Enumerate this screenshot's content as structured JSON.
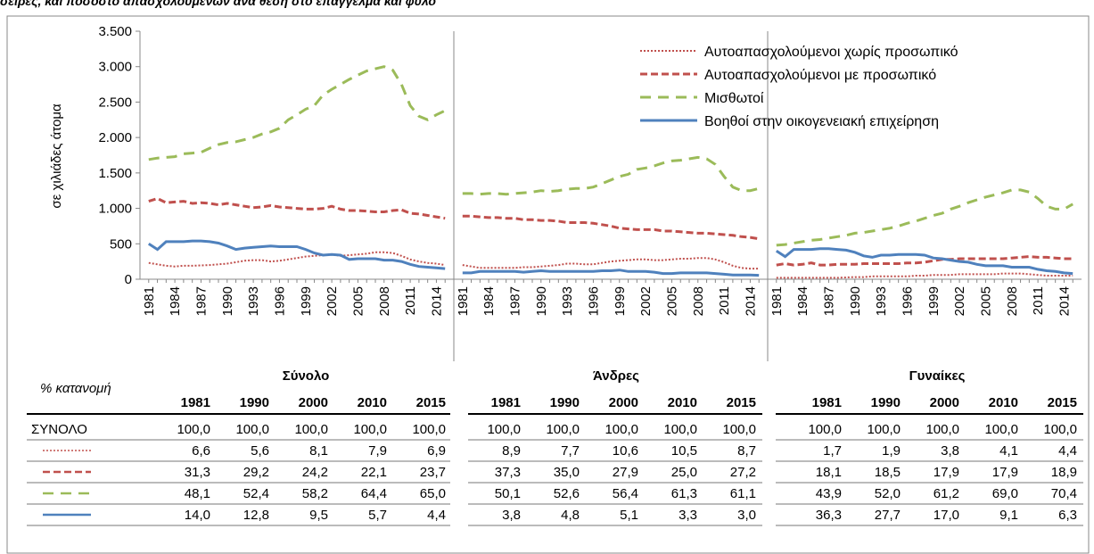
{
  "chart_data": {
    "type": "line",
    "title": "σειρές, και ποσοστό απασχολούμενων ανά θέση στο επάγγελμα και φύλο",
    "ylabel": "σε χιλιάδες άτομα",
    "ylim": [
      0,
      3500
    ],
    "yticks": [
      0,
      500,
      {
        "value": 1000,
        "label": "1.000"
      },
      {
        "value": 1500,
        "label": "1.500"
      },
      {
        "value": 2000,
        "label": "2.000"
      },
      {
        "value": 2500,
        "label": "2.500"
      },
      {
        "value": 3000,
        "label": "3.000"
      },
      {
        "value": 3500,
        "label": "3.500"
      }
    ],
    "legend": "upper right",
    "grid": false,
    "categories": [
      "1981",
      null,
      null,
      "1984",
      null,
      null,
      "1987",
      null,
      null,
      "1990",
      null,
      null,
      "1993",
      null,
      null,
      "1996",
      null,
      null,
      "1999",
      null,
      null,
      "2002",
      null,
      null,
      "2005",
      null,
      null,
      "2008",
      null,
      null,
      "2011",
      null,
      null,
      "2014",
      null
    ],
    "series": [
      {
        "name": "Αυτοαπασχολούμενοι χωρίς προσωπικό",
        "color": "#c0504d",
        "style": "dotted",
        "values": [
          [
            230,
            210,
            190,
            180,
            190,
            190,
            195,
            200,
            210,
            220,
            240,
            260,
            270,
            270,
            250,
            260,
            280,
            300,
            320,
            330,
            340,
            350,
            330,
            340,
            350,
            360,
            380,
            380,
            370,
            330,
            280,
            250,
            230,
            220,
            200
          ],
          [
            200,
            180,
            160,
            160,
            160,
            160,
            160,
            170,
            170,
            180,
            190,
            200,
            220,
            220,
            210,
            210,
            230,
            250,
            260,
            270,
            280,
            280,
            270,
            270,
            280,
            290,
            290,
            300,
            300,
            280,
            240,
            190,
            160,
            150,
            150
          ],
          [
            20,
            20,
            20,
            20,
            20,
            20,
            20,
            20,
            25,
            30,
            30,
            40,
            40,
            40,
            40,
            40,
            50,
            50,
            60,
            60,
            60,
            70,
            70,
            70,
            70,
            70,
            80,
            80,
            80,
            70,
            60,
            50,
            50,
            50,
            50
          ]
        ]
      },
      {
        "name": "Αυτοαπασχολούμενοι με προσωπικό",
        "color": "#c0504d",
        "style": "dashed",
        "values": [
          [
            1100,
            1140,
            1080,
            1090,
            1100,
            1070,
            1080,
            1070,
            1050,
            1070,
            1050,
            1030,
            1010,
            1020,
            1040,
            1020,
            1010,
            1000,
            990,
            990,
            1000,
            1030,
            990,
            970,
            970,
            960,
            950,
            950,
            970,
            980,
            930,
            920,
            900,
            880,
            860
          ],
          [
            890,
            890,
            880,
            870,
            870,
            860,
            860,
            840,
            840,
            830,
            830,
            820,
            800,
            800,
            800,
            790,
            770,
            750,
            720,
            710,
            700,
            700,
            700,
            680,
            680,
            670,
            660,
            650,
            650,
            640,
            630,
            620,
            600,
            590,
            570
          ],
          [
            200,
            220,
            200,
            210,
            230,
            200,
            200,
            210,
            210,
            210,
            220,
            220,
            220,
            220,
            220,
            230,
            230,
            240,
            260,
            280,
            280,
            290,
            290,
            290,
            290,
            290,
            290,
            300,
            310,
            320,
            310,
            310,
            300,
            290,
            290
          ]
        ]
      },
      {
        "name": "Μισθωτοί",
        "color": "#9bbb59",
        "style": "longdash",
        "values": [
          [
            1690,
            1710,
            1720,
            1730,
            1770,
            1780,
            1790,
            1850,
            1900,
            1930,
            1940,
            1970,
            2000,
            2050,
            2080,
            2130,
            2250,
            2320,
            2400,
            2450,
            2600,
            2680,
            2750,
            2820,
            2880,
            2940,
            2970,
            3000,
            2950,
            2750,
            2450,
            2300,
            2250,
            2320,
            2380
          ],
          [
            1210,
            1210,
            1200,
            1210,
            1210,
            1200,
            1210,
            1220,
            1230,
            1250,
            1240,
            1250,
            1270,
            1280,
            1280,
            1300,
            1350,
            1400,
            1450,
            1480,
            1550,
            1570,
            1600,
            1640,
            1670,
            1680,
            1700,
            1720,
            1700,
            1620,
            1450,
            1300,
            1250,
            1250,
            1280
          ],
          [
            480,
            490,
            510,
            530,
            550,
            560,
            580,
            600,
            620,
            650,
            660,
            680,
            700,
            720,
            750,
            790,
            820,
            860,
            900,
            930,
            990,
            1030,
            1080,
            1120,
            1160,
            1190,
            1220,
            1260,
            1260,
            1230,
            1140,
            1030,
            990,
            990,
            1060
          ]
        ]
      },
      {
        "name": "Βοηθοί στην οικογενειακή επιχείρηση",
        "color": "#4f81bd",
        "style": "solid",
        "values": [
          [
            500,
            420,
            530,
            530,
            530,
            540,
            540,
            530,
            510,
            470,
            420,
            440,
            450,
            460,
            470,
            460,
            460,
            460,
            420,
            370,
            340,
            350,
            340,
            280,
            290,
            290,
            290,
            270,
            270,
            250,
            210,
            180,
            170,
            160,
            150
          ],
          [
            90,
            90,
            110,
            110,
            110,
            110,
            110,
            100,
            110,
            120,
            110,
            110,
            110,
            110,
            110,
            110,
            120,
            120,
            130,
            110,
            110,
            110,
            100,
            80,
            80,
            90,
            90,
            90,
            90,
            80,
            70,
            60,
            60,
            60,
            55
          ],
          [
            400,
            320,
            420,
            420,
            420,
            430,
            430,
            420,
            410,
            380,
            330,
            310,
            340,
            340,
            350,
            350,
            350,
            340,
            300,
            290,
            270,
            250,
            240,
            210,
            190,
            190,
            190,
            170,
            170,
            170,
            140,
            120,
            110,
            90,
            80
          ]
        ]
      }
    ]
  },
  "table": {
    "header_label": "% κατανομή",
    "total_label": "ΣΥΝΟΛΟ",
    "groups": [
      {
        "name": "Σύνολο",
        "years": [
          "1981",
          "1990",
          "2000",
          "2010",
          "2015"
        ],
        "rows": [
          [
            "100,0",
            "100,0",
            "100,0",
            "100,0",
            "100,0"
          ],
          [
            "6,6",
            "5,6",
            "8,1",
            "7,9",
            "6,9"
          ],
          [
            "31,3",
            "29,2",
            "24,2",
            "22,1",
            "23,7"
          ],
          [
            "48,1",
            "52,4",
            "58,2",
            "64,4",
            "65,0"
          ],
          [
            "14,0",
            "12,8",
            "9,5",
            "5,7",
            "4,4"
          ]
        ]
      },
      {
        "name": "Άνδρες",
        "years": [
          "1981",
          "1990",
          "2000",
          "2010",
          "2015"
        ],
        "rows": [
          [
            "100,0",
            "100,0",
            "100,0",
            "100,0",
            "100,0"
          ],
          [
            "8,9",
            "7,7",
            "10,6",
            "10,5",
            "8,7"
          ],
          [
            "37,3",
            "35,0",
            "27,9",
            "25,0",
            "27,2"
          ],
          [
            "50,1",
            "52,6",
            "56,4",
            "61,3",
            "61,1"
          ],
          [
            "3,8",
            "4,8",
            "5,1",
            "3,3",
            "3,0"
          ]
        ]
      },
      {
        "name": "Γυναίκες",
        "years": [
          "1981",
          "1990",
          "2000",
          "2010",
          "2015"
        ],
        "rows": [
          [
            "100,0",
            "100,0",
            "100,0",
            "100,0",
            "100,0"
          ],
          [
            "1,7",
            "1,9",
            "3,8",
            "4,1",
            "4,4"
          ],
          [
            "18,1",
            "18,5",
            "17,9",
            "17,9",
            "18,9"
          ],
          [
            "43,9",
            "52,0",
            "61,2",
            "69,0",
            "70,4"
          ],
          [
            "36,3",
            "27,7",
            "17,0",
            "9,1",
            "6,3"
          ]
        ]
      }
    ]
  }
}
